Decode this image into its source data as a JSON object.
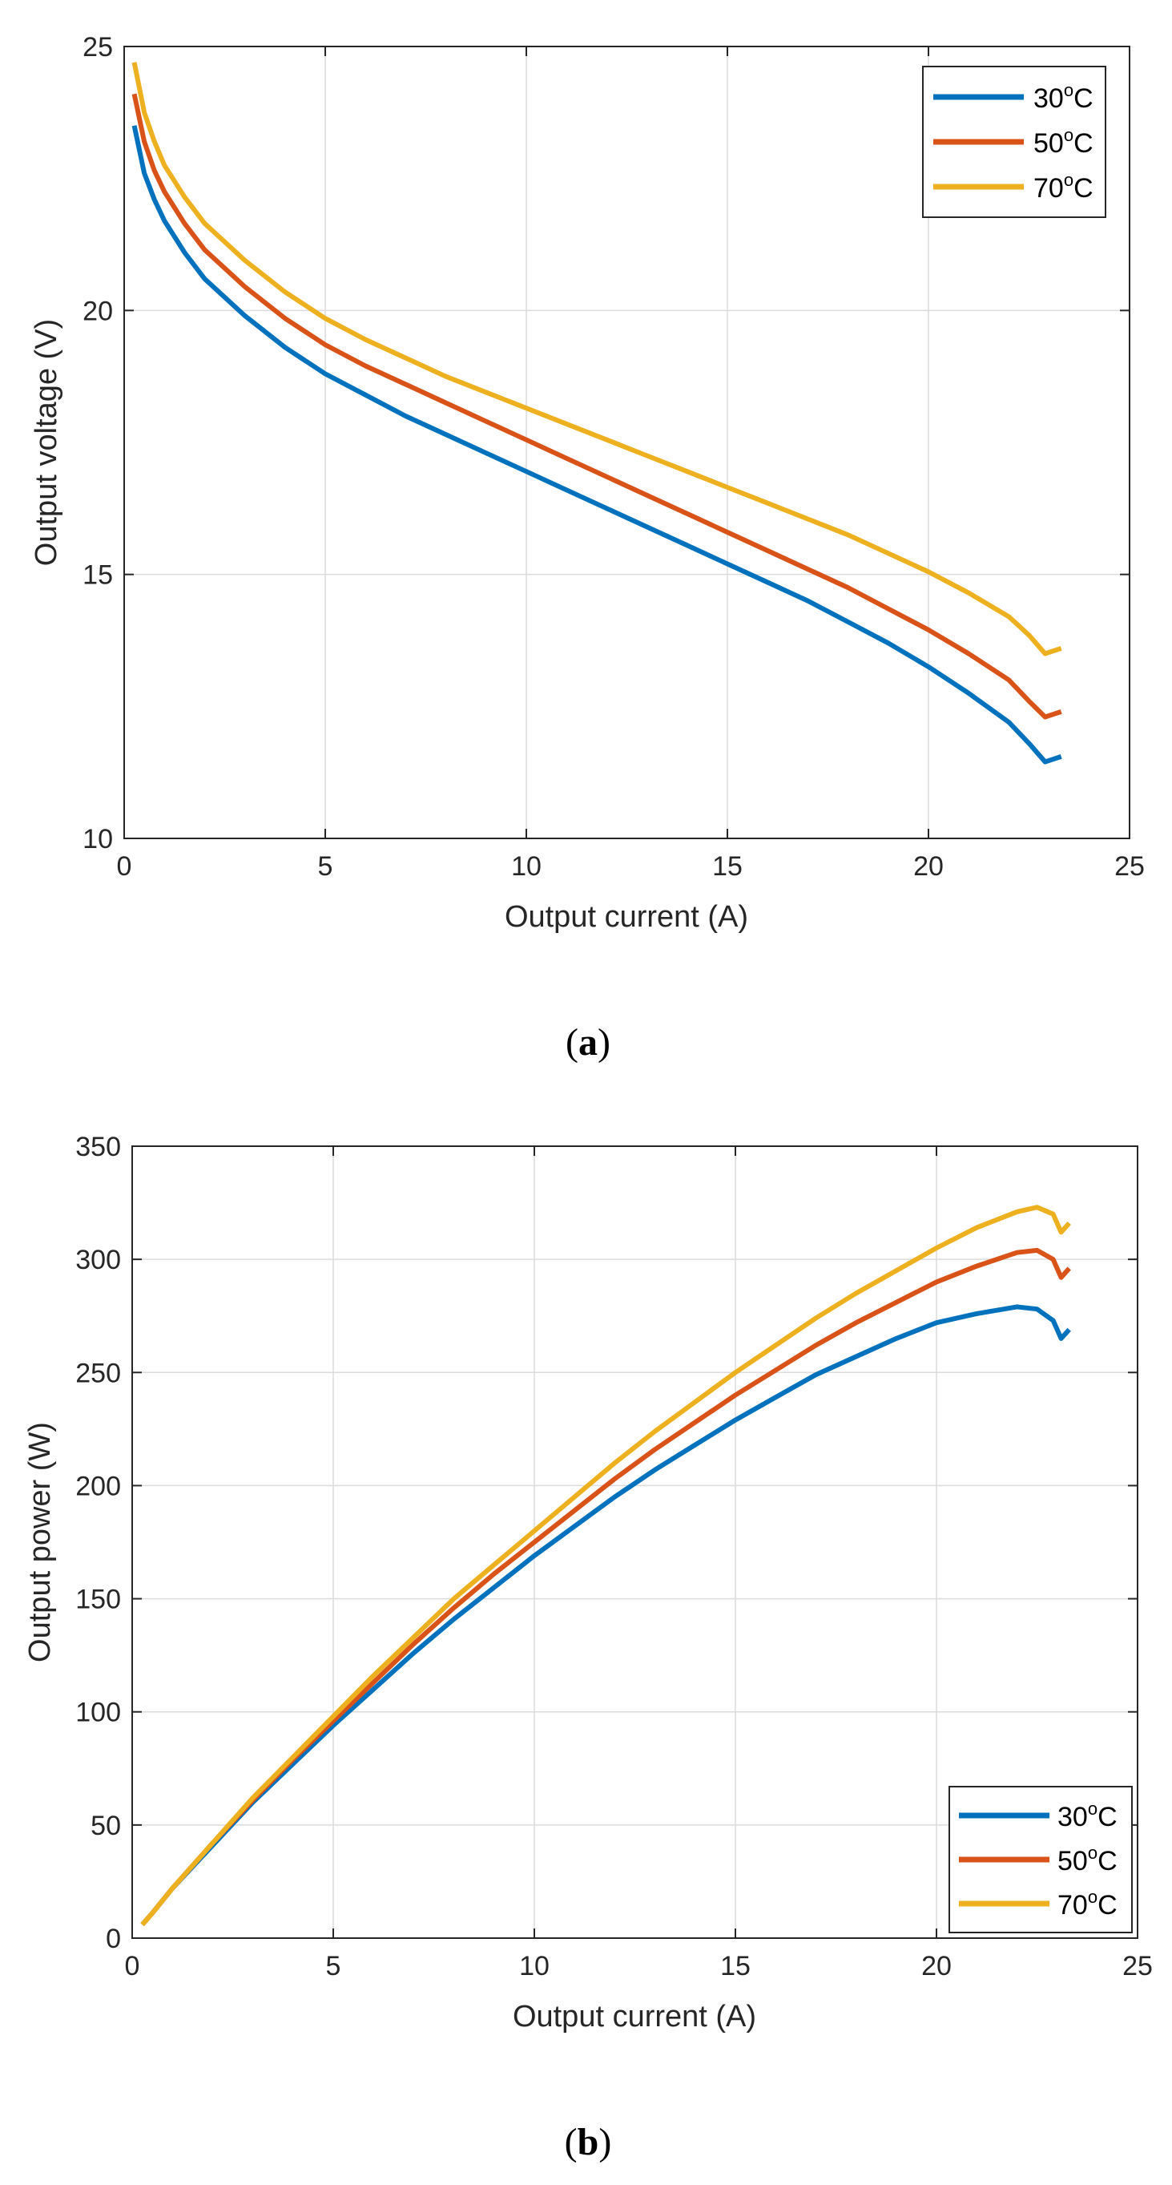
{
  "chart_data": [
    {
      "type": "line",
      "caption": {
        "open": "(",
        "letter": "a",
        "close": ")"
      },
      "xlabel": "Output current (A)",
      "ylabel": "Output voltage (V)",
      "xlim": [
        0,
        25
      ],
      "ylim": [
        10,
        25
      ],
      "xticks": [
        "0",
        "5",
        "10",
        "15",
        "20",
        "25"
      ],
      "yticks": [
        "10",
        "15",
        "20",
        "25"
      ],
      "grid": true,
      "legend_position": "top-right",
      "series": [
        {
          "name": "30",
          "unit": "C",
          "sup": "o",
          "color": "#0072BD",
          "x": [
            0.25,
            0.5,
            0.75,
            1,
            1.5,
            2,
            3,
            4,
            5,
            6,
            7,
            8,
            9,
            10,
            11,
            12,
            13,
            14,
            15,
            16,
            17,
            18,
            19,
            20,
            21,
            22,
            22.5,
            22.9,
            23.1,
            23.3
          ],
          "y": [
            23.5,
            22.6,
            22.1,
            21.7,
            21.1,
            20.6,
            19.9,
            19.3,
            18.8,
            18.4,
            18.0,
            17.65,
            17.3,
            16.95,
            16.6,
            16.25,
            15.9,
            15.55,
            15.2,
            14.85,
            14.5,
            14.1,
            13.7,
            13.25,
            12.75,
            12.2,
            11.8,
            11.45,
            11.5,
            11.55
          ]
        },
        {
          "name": "50",
          "unit": "C",
          "sup": "o",
          "color": "#D95319",
          "x": [
            0.25,
            0.5,
            0.75,
            1,
            1.5,
            2,
            3,
            4,
            5,
            6,
            7,
            8,
            9,
            10,
            11,
            12,
            13,
            14,
            15,
            16,
            17,
            18,
            19,
            20,
            21,
            22,
            22.5,
            22.9,
            23.1,
            23.3
          ],
          "y": [
            24.1,
            23.2,
            22.65,
            22.25,
            21.65,
            21.15,
            20.45,
            19.85,
            19.35,
            18.95,
            18.6,
            18.25,
            17.9,
            17.55,
            17.2,
            16.85,
            16.5,
            16.15,
            15.8,
            15.45,
            15.1,
            14.75,
            14.35,
            13.95,
            13.5,
            13.0,
            12.6,
            12.3,
            12.35,
            12.4
          ]
        },
        {
          "name": "70",
          "unit": "C",
          "sup": "o",
          "color": "#EDB120",
          "x": [
            0.25,
            0.5,
            0.75,
            1,
            1.5,
            2,
            3,
            4,
            5,
            6,
            7,
            8,
            9,
            10,
            11,
            12,
            13,
            14,
            15,
            16,
            17,
            18,
            19,
            20,
            21,
            22,
            22.5,
            22.9,
            23.1,
            23.3
          ],
          "y": [
            24.7,
            23.75,
            23.2,
            22.75,
            22.15,
            21.65,
            20.95,
            20.35,
            19.85,
            19.45,
            19.1,
            18.75,
            18.45,
            18.15,
            17.85,
            17.55,
            17.25,
            16.95,
            16.65,
            16.35,
            16.05,
            15.75,
            15.4,
            15.05,
            14.65,
            14.2,
            13.85,
            13.5,
            13.55,
            13.6
          ]
        }
      ]
    },
    {
      "type": "line",
      "caption": {
        "open": "(",
        "letter": "b",
        "close": ")"
      },
      "xlabel": "Output current (A)",
      "ylabel": "Output power (W)",
      "xlim": [
        0,
        25
      ],
      "ylim": [
        0,
        350
      ],
      "xticks": [
        "0",
        "5",
        "10",
        "15",
        "20",
        "25"
      ],
      "yticks": [
        "0",
        "50",
        "100",
        "150",
        "200",
        "250",
        "300",
        "350"
      ],
      "grid": true,
      "legend_position": "bottom-right",
      "series": [
        {
          "name": "30",
          "unit": "C",
          "sup": "o",
          "color": "#0072BD",
          "x": [
            0.25,
            0.5,
            1,
            2,
            3,
            4,
            5,
            6,
            7,
            8,
            9,
            10,
            11,
            12,
            13,
            14,
            15,
            16,
            17,
            18,
            19,
            20,
            21,
            22,
            22.5,
            22.9,
            23.1,
            23.3
          ],
          "y": [
            6,
            11,
            22,
            41,
            60,
            77,
            94,
            110,
            126,
            141,
            155,
            169,
            182,
            195,
            207,
            218,
            229,
            239,
            249,
            257,
            265,
            272,
            276,
            279,
            278,
            273,
            265,
            269
          ]
        },
        {
          "name": "50",
          "unit": "C",
          "sup": "o",
          "color": "#D95319",
          "x": [
            0.25,
            0.5,
            1,
            2,
            3,
            4,
            5,
            6,
            7,
            8,
            9,
            10,
            11,
            12,
            13,
            14,
            15,
            16,
            17,
            18,
            19,
            20,
            21,
            22,
            22.5,
            22.9,
            23.1,
            23.3
          ],
          "y": [
            6,
            11,
            22,
            42,
            61,
            79,
            96,
            113,
            130,
            146,
            161,
            175,
            189,
            203,
            216,
            228,
            240,
            251,
            262,
            272,
            281,
            290,
            297,
            303,
            304,
            300,
            292,
            296
          ]
        },
        {
          "name": "70",
          "unit": "C",
          "sup": "o",
          "color": "#EDB120",
          "x": [
            0.25,
            0.5,
            1,
            2,
            3,
            4,
            5,
            6,
            7,
            8,
            9,
            10,
            11,
            12,
            13,
            14,
            15,
            16,
            17,
            18,
            19,
            20,
            21,
            22,
            22.5,
            22.9,
            23.1,
            23.3
          ],
          "y": [
            6,
            11,
            22,
            42,
            62,
            80,
            98,
            116,
            133,
            150,
            165,
            180,
            195,
            210,
            224,
            237,
            250,
            262,
            274,
            285,
            295,
            305,
            314,
            321,
            323,
            320,
            312,
            316
          ]
        }
      ]
    }
  ]
}
